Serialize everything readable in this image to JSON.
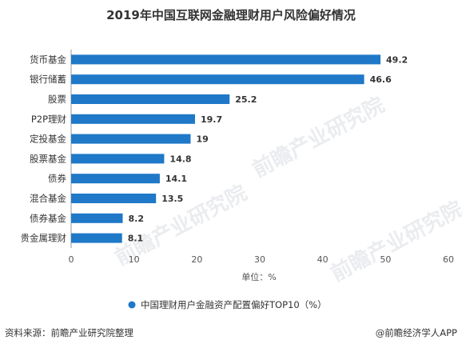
{
  "chart_data": {
    "type": "bar",
    "orientation": "horizontal",
    "title": "2019年中国互联网金融理财用户风险偏好情况",
    "categories": [
      "货币基金",
      "银行储蓄",
      "股票",
      "P2P理财",
      "定投基金",
      "股票基金",
      "债券",
      "混合基金",
      "债券基金",
      "贵金属理财"
    ],
    "series": [
      {
        "name": "中国理财用户金融资产配置偏好TOP10（%）",
        "values": [
          49.2,
          46.6,
          25.2,
          19.7,
          19,
          14.8,
          14.1,
          13.5,
          8.2,
          8.1
        ],
        "value_labels": [
          "49.2",
          "46.6",
          "25.2",
          "19.7",
          "19",
          "14.8",
          "14.1",
          "13.5",
          "8.2",
          "8.1"
        ],
        "color": "#1f78c8"
      }
    ],
    "xlim": [
      0,
      60
    ],
    "xticks": [
      "0",
      "10",
      "20",
      "30",
      "40",
      "50",
      "60"
    ],
    "xlabel": "单位：%",
    "grid": false,
    "legend_position": "bottom"
  },
  "footer": {
    "source": "资料来源：前瞻产业研究院整理",
    "credit": "@前瞻经济学人APP"
  },
  "watermark": {
    "text": "前瞻产业研究院"
  },
  "colors": {
    "bar": "#1f78c8",
    "axis": "#999999",
    "text": "#333333"
  }
}
